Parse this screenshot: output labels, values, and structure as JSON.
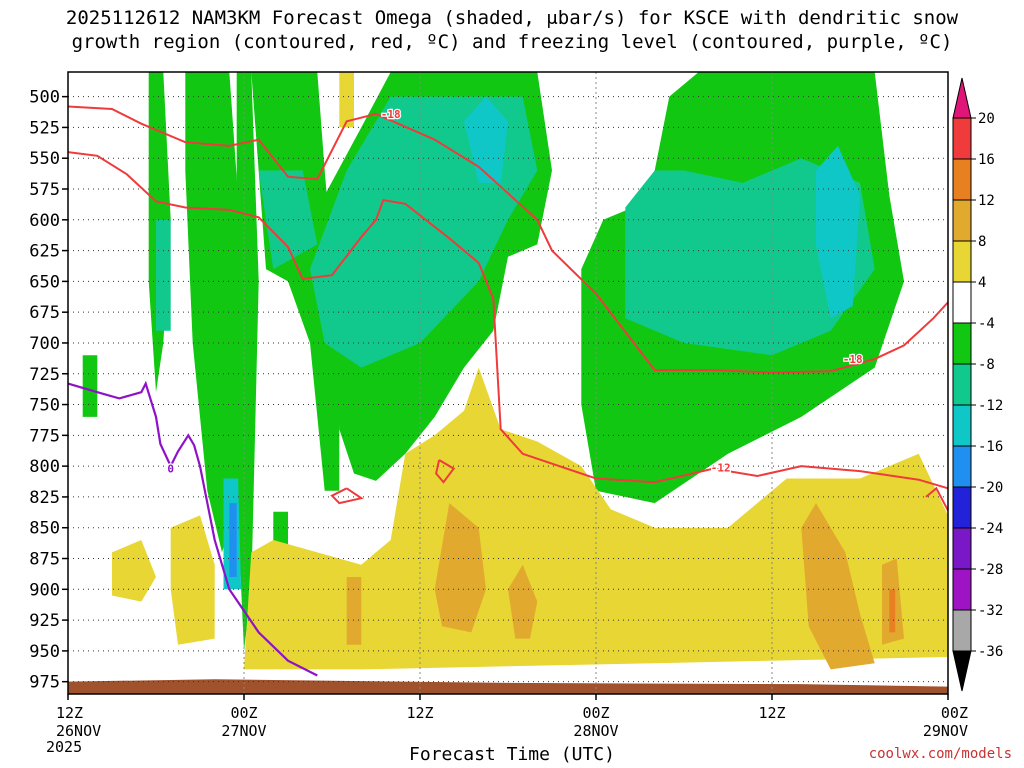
{
  "title": {
    "line1": "2025112612 NAM3KM Forecast Omega (shaded, μbar/s) for KSCE with dendritic snow",
    "line2": "growth region (contoured, red, ºC) and freezing level (contoured, purple, ºC)"
  },
  "credit": "coolwx.com/models",
  "chart_data": {
    "type": "heatmap",
    "xlabel": "Forecast Time (UTC)",
    "x_start_year": "2025",
    "x_ticks": [
      {
        "hour": 0,
        "line1": "12Z",
        "line2": "26NOV"
      },
      {
        "hour": 12,
        "line1": "00Z",
        "line2": "27NOV"
      },
      {
        "hour": 24,
        "line1": "12Z",
        "line2": ""
      },
      {
        "hour": 36,
        "line1": "00Z",
        "line2": "28NOV"
      },
      {
        "hour": 48,
        "line1": "12Z",
        "line2": ""
      },
      {
        "hour": 60,
        "line1": "00Z",
        "line2": "29NOV"
      }
    ],
    "xlim": [
      0,
      60
    ],
    "ylim_hPa": [
      480,
      985
    ],
    "y_ticks": [
      500,
      525,
      550,
      575,
      600,
      625,
      650,
      675,
      700,
      725,
      750,
      775,
      800,
      825,
      850,
      875,
      900,
      925,
      950,
      975
    ],
    "grid": true,
    "colorbar": {
      "labels": [
        "20",
        "16",
        "12",
        "8",
        "4",
        "-4",
        "-8",
        "-12",
        "-16",
        "-20",
        "-24",
        "-28",
        "-32",
        "-36"
      ],
      "colors": {
        "top_arrow": "#e0157a",
        "16_20": "#ef3b3b",
        "12_16": "#e88021",
        "8_12": "#e2a92f",
        "4_8": "#e8d634",
        "-4_4": "#ffffff",
        "-8_-4": "#11c711",
        "-12_-8": "#12c98d",
        "-16_-12": "#10c7c7",
        "-20_-16": "#1f8ff0",
        "-24_-20": "#2222d8",
        "-28_-24": "#7a18c8",
        "-32_-28": "#9e14c4",
        "-36_-32": "#a8a8a8",
        "bottom_arrow": "#000000"
      }
    },
    "contour_labels": [
      "-18",
      "-12",
      "0"
    ],
    "dgz_contours": [
      {
        "level": -18,
        "points": [
          [
            0,
            508
          ],
          [
            3,
            510
          ],
          [
            5,
            522
          ],
          [
            8,
            537
          ],
          [
            11,
            540
          ],
          [
            13,
            535
          ],
          [
            15,
            565
          ],
          [
            17,
            567
          ],
          [
            19,
            520
          ],
          [
            21,
            514
          ],
          [
            25,
            535
          ],
          [
            28,
            557
          ],
          [
            32,
            600
          ],
          [
            33,
            625
          ],
          [
            36,
            660
          ],
          [
            40,
            722
          ],
          [
            44,
            722
          ],
          [
            48,
            724
          ],
          [
            52,
            723
          ],
          [
            55,
            713
          ],
          [
            57,
            702
          ],
          [
            59,
            680
          ],
          [
            60,
            667
          ]
        ]
      },
      {
        "level": -18,
        "points": [
          [
            0,
            545
          ],
          [
            2,
            548
          ],
          [
            4,
            563
          ],
          [
            6,
            585
          ],
          [
            8,
            590
          ],
          [
            11,
            592
          ],
          [
            13,
            598
          ],
          [
            15,
            622
          ],
          [
            16,
            648
          ],
          [
            18,
            645
          ],
          [
            20,
            614
          ],
          [
            21,
            600
          ],
          [
            21.5,
            584
          ],
          [
            23,
            587
          ],
          [
            26,
            615
          ],
          [
            28,
            635
          ],
          [
            29,
            664
          ],
          [
            29.5,
            770
          ],
          [
            31,
            790
          ],
          [
            36,
            810
          ],
          [
            40,
            813
          ],
          [
            44,
            802
          ],
          [
            47,
            808
          ],
          [
            50,
            800
          ],
          [
            54,
            804
          ],
          [
            58,
            811
          ],
          [
            60,
            818
          ]
        ]
      },
      {
        "level": -12,
        "points": [
          [
            19,
            818
          ],
          [
            20,
            826
          ],
          [
            18.5,
            830
          ],
          [
            18,
            824
          ],
          [
            19,
            818
          ]
        ]
      },
      {
        "level": -12,
        "points": [
          [
            25.3,
            795
          ],
          [
            26.3,
            802
          ],
          [
            25.6,
            813
          ],
          [
            25.1,
            806
          ],
          [
            25.3,
            795
          ]
        ]
      },
      {
        "level": -12,
        "points": [
          [
            58.5,
            825
          ],
          [
            59.2,
            818
          ],
          [
            60,
            836
          ]
        ]
      }
    ],
    "freezing_level": {
      "level": 0,
      "points": [
        [
          0,
          733
        ],
        [
          2,
          740
        ],
        [
          3.5,
          745
        ],
        [
          5,
          740
        ],
        [
          5.3,
          733
        ],
        [
          6,
          760
        ],
        [
          6.3,
          782
        ],
        [
          7,
          800
        ],
        [
          7.5,
          788
        ],
        [
          8.2,
          775
        ],
        [
          8.6,
          783
        ],
        [
          9,
          800
        ],
        [
          10,
          860
        ],
        [
          11,
          900
        ],
        [
          13,
          935
        ],
        [
          15,
          958
        ],
        [
          17,
          970
        ]
      ]
    },
    "omega_blobs": [
      {
        "band": "-8_-4",
        "poly": [
          [
            5.5,
            480
          ],
          [
            6.5,
            480
          ],
          [
            7,
            600
          ],
          [
            6.5,
            700
          ],
          [
            6,
            740
          ],
          [
            5.5,
            650
          ]
        ]
      },
      {
        "band": "-8_-4",
        "poly": [
          [
            8,
            480
          ],
          [
            11,
            480
          ],
          [
            12,
            650
          ],
          [
            11.5,
            830
          ],
          [
            10.5,
            870
          ],
          [
            9.5,
            820
          ],
          [
            8.5,
            700
          ],
          [
            8,
            560
          ]
        ]
      },
      {
        "band": "-8_-4",
        "poly": [
          [
            11.5,
            480
          ],
          [
            12.5,
            480
          ],
          [
            13,
            650
          ],
          [
            12.5,
            900
          ],
          [
            12,
            950
          ],
          [
            11.5,
            820
          ]
        ]
      },
      {
        "band": "-8_-4",
        "poly": [
          [
            12.5,
            480
          ],
          [
            17,
            480
          ],
          [
            17.5,
            560
          ],
          [
            18.5,
            700
          ],
          [
            18.5,
            820
          ],
          [
            17.5,
            820
          ],
          [
            16.5,
            700
          ],
          [
            15,
            650
          ],
          [
            13.5,
            640
          ]
        ]
      },
      {
        "band": "-8_-4",
        "poly": [
          [
            17.5,
            580
          ],
          [
            20,
            525
          ],
          [
            22,
            480
          ],
          [
            32,
            480
          ],
          [
            33,
            560
          ],
          [
            32,
            620
          ],
          [
            30,
            630
          ],
          [
            29,
            690
          ],
          [
            27,
            720
          ],
          [
            25,
            760
          ],
          [
            23,
            790
          ],
          [
            21,
            812
          ],
          [
            19.5,
            806
          ],
          [
            18.5,
            770
          ]
        ]
      },
      {
        "band": "-8_-4",
        "poly": [
          [
            35,
            640
          ],
          [
            36.5,
            600
          ],
          [
            38.5,
            590
          ],
          [
            40,
            560
          ],
          [
            41,
            500
          ],
          [
            43,
            480
          ],
          [
            55,
            480
          ],
          [
            56,
            580
          ],
          [
            57,
            650
          ],
          [
            55,
            720
          ],
          [
            50,
            760
          ],
          [
            45,
            790
          ],
          [
            40,
            830
          ],
          [
            36,
            820
          ],
          [
            35,
            750
          ]
        ]
      },
      {
        "band": "-8_-4",
        "poly": [
          [
            1,
            710
          ],
          [
            2,
            710
          ],
          [
            2,
            760
          ],
          [
            1,
            760
          ]
        ]
      },
      {
        "band": "-8_-4",
        "poly": [
          [
            14,
            837
          ],
          [
            15,
            837
          ],
          [
            15,
            865
          ],
          [
            14,
            865
          ]
        ]
      },
      {
        "band": "-12_-8",
        "poly": [
          [
            6,
            600
          ],
          [
            7,
            600
          ],
          [
            7,
            690
          ],
          [
            6,
            690
          ]
        ]
      },
      {
        "band": "-12_-8",
        "poly": [
          [
            13,
            560
          ],
          [
            16,
            560
          ],
          [
            17,
            620
          ],
          [
            14,
            640
          ]
        ]
      },
      {
        "band": "-12_-8",
        "poly": [
          [
            16.5,
            640
          ],
          [
            19,
            560
          ],
          [
            22,
            500
          ],
          [
            31,
            500
          ],
          [
            32,
            560
          ],
          [
            30,
            600
          ],
          [
            28,
            650
          ],
          [
            24,
            700
          ],
          [
            20,
            720
          ],
          [
            17.5,
            700
          ]
        ]
      },
      {
        "band": "-12_-8",
        "poly": [
          [
            38,
            590
          ],
          [
            40,
            560
          ],
          [
            42,
            560
          ],
          [
            46,
            570
          ],
          [
            50,
            550
          ],
          [
            54,
            570
          ],
          [
            55,
            640
          ],
          [
            52,
            690
          ],
          [
            48,
            710
          ],
          [
            42,
            700
          ],
          [
            38,
            680
          ]
        ]
      },
      {
        "band": "-16_-12",
        "poly": [
          [
            27,
            520
          ],
          [
            28.5,
            500
          ],
          [
            30,
            520
          ],
          [
            29.5,
            570
          ],
          [
            28,
            570
          ]
        ]
      },
      {
        "band": "-16_-12",
        "poly": [
          [
            51,
            560
          ],
          [
            52.5,
            540
          ],
          [
            54,
            580
          ],
          [
            53.5,
            670
          ],
          [
            52,
            680
          ],
          [
            51,
            620
          ]
        ]
      },
      {
        "band": "-16_-12",
        "poly": [
          [
            10.6,
            810
          ],
          [
            11.6,
            810
          ],
          [
            11.8,
            900
          ],
          [
            10.6,
            900
          ]
        ]
      },
      {
        "band": "-20_-16",
        "poly": [
          [
            11,
            830
          ],
          [
            11.5,
            830
          ],
          [
            11.5,
            890
          ],
          [
            11,
            890
          ]
        ]
      },
      {
        "band": "4_8",
        "poly": [
          [
            3,
            870
          ],
          [
            5,
            860
          ],
          [
            6,
            890
          ],
          [
            5,
            910
          ],
          [
            3,
            905
          ]
        ]
      },
      {
        "band": "4_8",
        "poly": [
          [
            7,
            850
          ],
          [
            9,
            840
          ],
          [
            10,
            880
          ],
          [
            10,
            940
          ],
          [
            7.5,
            945
          ],
          [
            7,
            900
          ]
        ]
      },
      {
        "band": "4_8",
        "poly": [
          [
            12.5,
            870
          ],
          [
            14,
            860
          ],
          [
            17,
            870
          ],
          [
            20,
            880
          ],
          [
            22,
            860
          ],
          [
            23,
            790
          ],
          [
            25,
            775
          ],
          [
            27,
            755
          ],
          [
            28,
            720
          ],
          [
            29.5,
            770
          ],
          [
            32,
            780
          ],
          [
            35,
            800
          ],
          [
            37,
            835
          ],
          [
            40,
            850
          ],
          [
            45,
            850
          ],
          [
            49,
            810
          ],
          [
            54,
            810
          ],
          [
            58,
            790
          ],
          [
            60,
            840
          ],
          [
            60,
            955
          ],
          [
            40,
            960
          ],
          [
            20,
            965
          ],
          [
            12,
            965
          ]
        ]
      },
      {
        "band": "4_8",
        "poly": [
          [
            18.5,
            480
          ],
          [
            19.5,
            480
          ],
          [
            19.5,
            525
          ],
          [
            18.5,
            525
          ]
        ]
      },
      {
        "band": "8_12",
        "poly": [
          [
            25,
            900
          ],
          [
            26,
            830
          ],
          [
            28,
            850
          ],
          [
            28.5,
            900
          ],
          [
            27.5,
            935
          ],
          [
            25.5,
            930
          ]
        ]
      },
      {
        "band": "8_12",
        "poly": [
          [
            30,
            900
          ],
          [
            31,
            880
          ],
          [
            32,
            910
          ],
          [
            31.5,
            940
          ],
          [
            30.5,
            940
          ]
        ]
      },
      {
        "band": "8_12",
        "poly": [
          [
            19,
            890
          ],
          [
            20,
            890
          ],
          [
            20,
            945
          ],
          [
            19,
            945
          ]
        ]
      },
      {
        "band": "8_12",
        "poly": [
          [
            50,
            850
          ],
          [
            51,
            830
          ],
          [
            53,
            870
          ],
          [
            54,
            920
          ],
          [
            55,
            960
          ],
          [
            52,
            965
          ],
          [
            50.5,
            930
          ]
        ]
      },
      {
        "band": "8_12",
        "poly": [
          [
            55.5,
            880
          ],
          [
            56.5,
            875
          ],
          [
            57,
            940
          ],
          [
            55.5,
            945
          ]
        ]
      },
      {
        "band": "12_16",
        "poly": [
          [
            56,
            900
          ],
          [
            56.4,
            900
          ],
          [
            56.4,
            935
          ],
          [
            56,
            935
          ]
        ]
      }
    ]
  }
}
